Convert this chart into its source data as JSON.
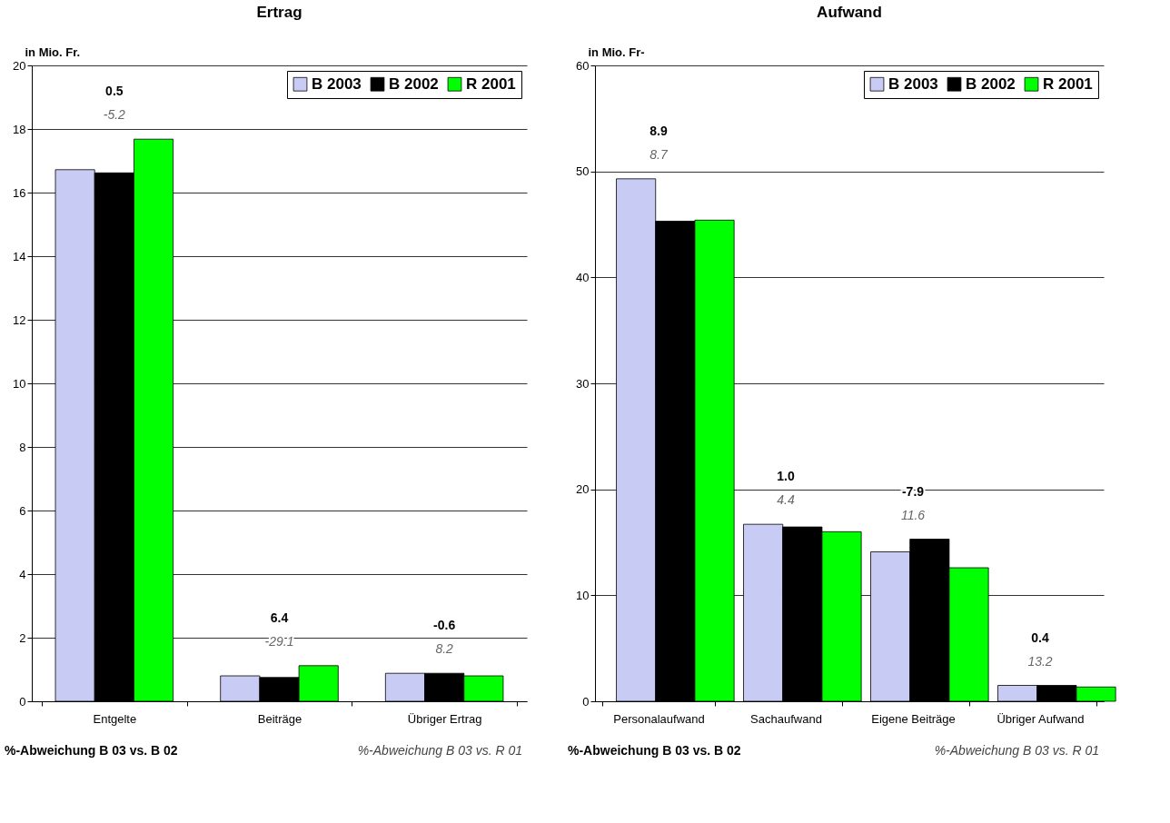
{
  "chart_data": [
    {
      "type": "bar",
      "title": "Ertrag",
      "ylabel": "in Mio. Fr.",
      "categories": [
        "Entgelte",
        "Beiträge",
        "Übriger Ertrag"
      ],
      "series": [
        {
          "name": "B 2003",
          "color": "#c8ccf4",
          "values": [
            16.72,
            0.8,
            0.88
          ]
        },
        {
          "name": "B 2002",
          "color": "#000000",
          "values": [
            16.62,
            0.75,
            0.88
          ]
        },
        {
          "name": "R 2001",
          "color": "#00ff00",
          "values": [
            17.68,
            1.12,
            0.8
          ]
        }
      ],
      "ylim": [
        0,
        20
      ],
      "yticks": [
        0,
        2,
        4,
        6,
        8,
        10,
        12,
        14,
        16,
        18,
        20
      ],
      "grid": "y",
      "legend": "top right",
      "annotations": [
        "0.5",
        "-5.2",
        "6.4",
        "-29.1",
        "-0.6",
        "8.2",
        "%-Abweichung B 03 vs. B 02",
        "%-Abweichung B 03 vs. R 01"
      ]
    },
    {
      "type": "bar",
      "title": "Aufwand",
      "ylabel": "in Mio. Fr-",
      "categories": [
        "Personalaufwand",
        "Sachaufwand",
        "Eigene Beiträge",
        "Übriger Aufwand"
      ],
      "series": [
        {
          "name": "B 2003",
          "color": "#c8ccf4",
          "values": [
            49.3,
            16.7,
            14.1,
            1.5
          ]
        },
        {
          "name": "B 2002",
          "color": "#000000",
          "values": [
            45.3,
            16.45,
            15.3,
            1.5
          ]
        },
        {
          "name": "R 2001",
          "color": "#00ff00",
          "values": [
            45.4,
            16.0,
            12.6,
            1.35
          ]
        }
      ],
      "ylim": [
        0,
        60
      ],
      "yticks": [
        0,
        10,
        20,
        30,
        40,
        50,
        60
      ],
      "grid": "y",
      "legend": "top right",
      "annotations": [
        "8.9",
        "8.7",
        "1.0",
        "4.4",
        "-7.9",
        "11.6",
        "0.4",
        "13.2",
        "%-Abweichung B 03 vs. B 02",
        "%-Abweichung B 03 vs. R 01"
      ]
    }
  ]
}
